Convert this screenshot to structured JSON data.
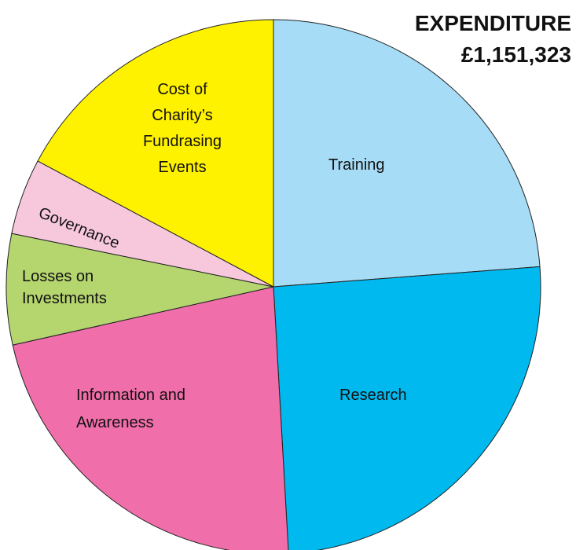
{
  "chart_data": {
    "type": "pie",
    "title": "EXPENDITURE",
    "subtitle": "£1,151,323",
    "categories": [
      "Training",
      "Research",
      "Information and Awareness",
      "Losses on Investments",
      "Governance",
      "Cost of Charity’s Fundrasing Events"
    ],
    "values": [
      23.8,
      25.3,
      22.4,
      6.7,
      4.6,
      17.2
    ],
    "colors": [
      "#a6dcf5",
      "#00b9ef",
      "#f06ea9",
      "#b5d56f",
      "#f7c8dc",
      "#fff200"
    ],
    "start_angle": 0,
    "direction": "clockwise"
  }
}
